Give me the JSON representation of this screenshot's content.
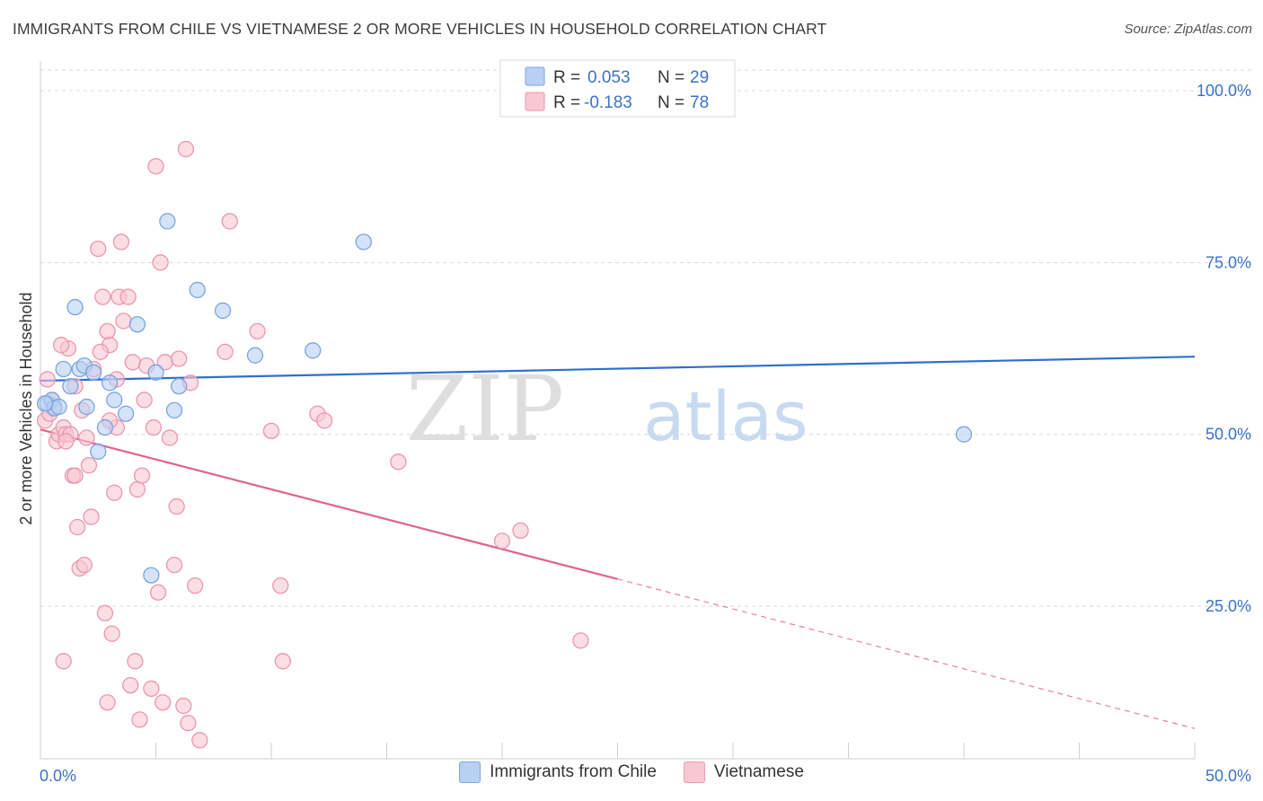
{
  "header": {
    "title": "IMMIGRANTS FROM CHILE VS VIETNAMESE 2 OR MORE VEHICLES IN HOUSEHOLD CORRELATION CHART",
    "source": "Source: ZipAtlas.com"
  },
  "watermark": {
    "zip": "ZIP",
    "atlas": "atlas"
  },
  "colors": {
    "blue_fill": "#b8d0f2",
    "blue_stroke": "#7aa5e0",
    "blue_line": "#2f6fd0",
    "pink_fill": "#f8c7d4",
    "pink_stroke": "#ec96ae",
    "pink_line": "#e0628c",
    "axis_label": "#3a72c8",
    "grid": "#d8d8d8"
  },
  "stats_legend": [
    {
      "r_label": "R =",
      "r_value": "0.053",
      "n_label": "N =",
      "n_value": "29"
    },
    {
      "r_label": "R =",
      "r_value": "-0.183",
      "n_label": "N =",
      "n_value": "78"
    }
  ],
  "bottom_legend": [
    "Immigrants from Chile",
    "Vietnamese"
  ],
  "chart_data": {
    "type": "scatter",
    "title": "IMMIGRANTS FROM CHILE VS VIETNAMESE 2 OR MORE VEHICLES IN HOUSEHOLD CORRELATION CHART",
    "xlabel": "",
    "ylabel": "2 or more Vehicles in Household",
    "xlim": [
      0,
      50
    ],
    "ylim": [
      2.8,
      103
    ],
    "x_tick_labels": [
      "0.0%",
      "50.0%"
    ],
    "y_ticks": [
      25,
      50,
      75,
      100
    ],
    "y_tick_labels": [
      "25.0%",
      "50.0%",
      "75.0%",
      "100.0%"
    ],
    "grid": true,
    "series": [
      {
        "name": "Immigrants from Chile",
        "points": [
          [
            0.3,
            54.5
          ],
          [
            0.5,
            55
          ],
          [
            0.6,
            53.8
          ],
          [
            0.8,
            54
          ],
          [
            1.0,
            59.5
          ],
          [
            1.3,
            57
          ],
          [
            1.5,
            68.5
          ],
          [
            1.7,
            59.5
          ],
          [
            1.9,
            60
          ],
          [
            2.0,
            54
          ],
          [
            2.3,
            59
          ],
          [
            2.5,
            47.5
          ],
          [
            2.8,
            51
          ],
          [
            3.0,
            57.5
          ],
          [
            3.2,
            55
          ],
          [
            3.7,
            53
          ],
          [
            4.2,
            66
          ],
          [
            4.8,
            29.5
          ],
          [
            5.0,
            59
          ],
          [
            5.5,
            81
          ],
          [
            5.8,
            53.5
          ],
          [
            6.0,
            57
          ],
          [
            6.8,
            71
          ],
          [
            7.9,
            68
          ],
          [
            9.3,
            61.5
          ],
          [
            11.8,
            62.2
          ],
          [
            14.0,
            78
          ],
          [
            40.0,
            50
          ],
          [
            0.2,
            54.5
          ]
        ]
      },
      {
        "name": "Vietnamese",
        "points": [
          [
            0.2,
            52
          ],
          [
            0.3,
            58
          ],
          [
            0.4,
            53
          ],
          [
            0.5,
            55
          ],
          [
            0.6,
            54
          ],
          [
            0.7,
            49
          ],
          [
            0.8,
            50
          ],
          [
            1.0,
            51
          ],
          [
            1.1,
            50
          ],
          [
            1.2,
            62.5
          ],
          [
            1.3,
            50
          ],
          [
            1.4,
            44
          ],
          [
            1.5,
            44
          ],
          [
            1.6,
            36.5
          ],
          [
            1.7,
            30.5
          ],
          [
            1.8,
            53.5
          ],
          [
            1.9,
            31
          ],
          [
            2.0,
            49.5
          ],
          [
            2.1,
            45.5
          ],
          [
            2.2,
            38
          ],
          [
            2.3,
            59.5
          ],
          [
            2.5,
            77
          ],
          [
            2.7,
            70
          ],
          [
            2.8,
            24
          ],
          [
            2.9,
            65
          ],
          [
            3.0,
            63
          ],
          [
            3.1,
            21
          ],
          [
            3.2,
            41.5
          ],
          [
            3.3,
            51
          ],
          [
            3.4,
            70
          ],
          [
            3.5,
            78
          ],
          [
            3.6,
            66.5
          ],
          [
            3.8,
            70
          ],
          [
            3.9,
            13.5
          ],
          [
            4.0,
            60.5
          ],
          [
            4.1,
            17
          ],
          [
            4.2,
            42
          ],
          [
            4.3,
            8.5
          ],
          [
            4.4,
            44
          ],
          [
            4.5,
            55
          ],
          [
            4.6,
            60
          ],
          [
            4.8,
            13
          ],
          [
            5.0,
            89
          ],
          [
            5.1,
            27
          ],
          [
            5.2,
            75
          ],
          [
            5.3,
            11
          ],
          [
            5.4,
            60.5
          ],
          [
            5.6,
            49.5
          ],
          [
            5.8,
            31
          ],
          [
            5.9,
            39.5
          ],
          [
            6.0,
            61
          ],
          [
            6.2,
            10.5
          ],
          [
            6.3,
            91.5
          ],
          [
            6.4,
            8
          ],
          [
            6.5,
            57.5
          ],
          [
            6.7,
            28
          ],
          [
            6.9,
            5.5
          ],
          [
            8.0,
            62
          ],
          [
            8.2,
            81
          ],
          [
            9.4,
            65
          ],
          [
            10.0,
            50.5
          ],
          [
            10.4,
            28
          ],
          [
            10.5,
            17
          ],
          [
            12.0,
            53
          ],
          [
            12.3,
            52
          ],
          [
            15.5,
            46
          ],
          [
            20.0,
            34.5
          ],
          [
            20.8,
            36
          ],
          [
            23.4,
            20
          ],
          [
            1.0,
            17
          ],
          [
            1.5,
            57
          ],
          [
            2.9,
            11
          ],
          [
            3.3,
            58
          ],
          [
            0.9,
            63
          ],
          [
            1.1,
            49
          ],
          [
            2.6,
            62
          ],
          [
            4.9,
            51
          ],
          [
            3.0,
            52
          ]
        ]
      }
    ],
    "trend_lines": [
      {
        "name": "Immigrants from Chile",
        "x": [
          0,
          50
        ],
        "y": [
          57.8,
          61.3
        ],
        "dashed_from": null
      },
      {
        "name": "Vietnamese",
        "x": [
          0,
          50
        ],
        "y": [
          50.7,
          7.2
        ],
        "dashed_from": 25
      }
    ]
  }
}
